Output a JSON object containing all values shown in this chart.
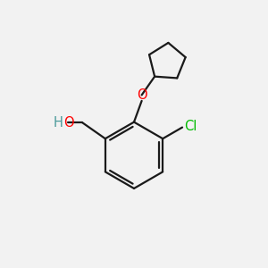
{
  "background_color": "#f2f2f2",
  "line_color": "#1a1a1a",
  "line_width": 1.6,
  "O_color": "#ff0000",
  "Cl_color": "#00bb00",
  "H_color": "#4a9a9a",
  "font_size": 10.5,
  "fig_size": [
    3.0,
    3.0
  ],
  "dpi": 100,
  "xlim": [
    0,
    10
  ],
  "ylim": [
    0,
    10
  ],
  "bx": 5.0,
  "by": 4.2,
  "br": 1.25
}
